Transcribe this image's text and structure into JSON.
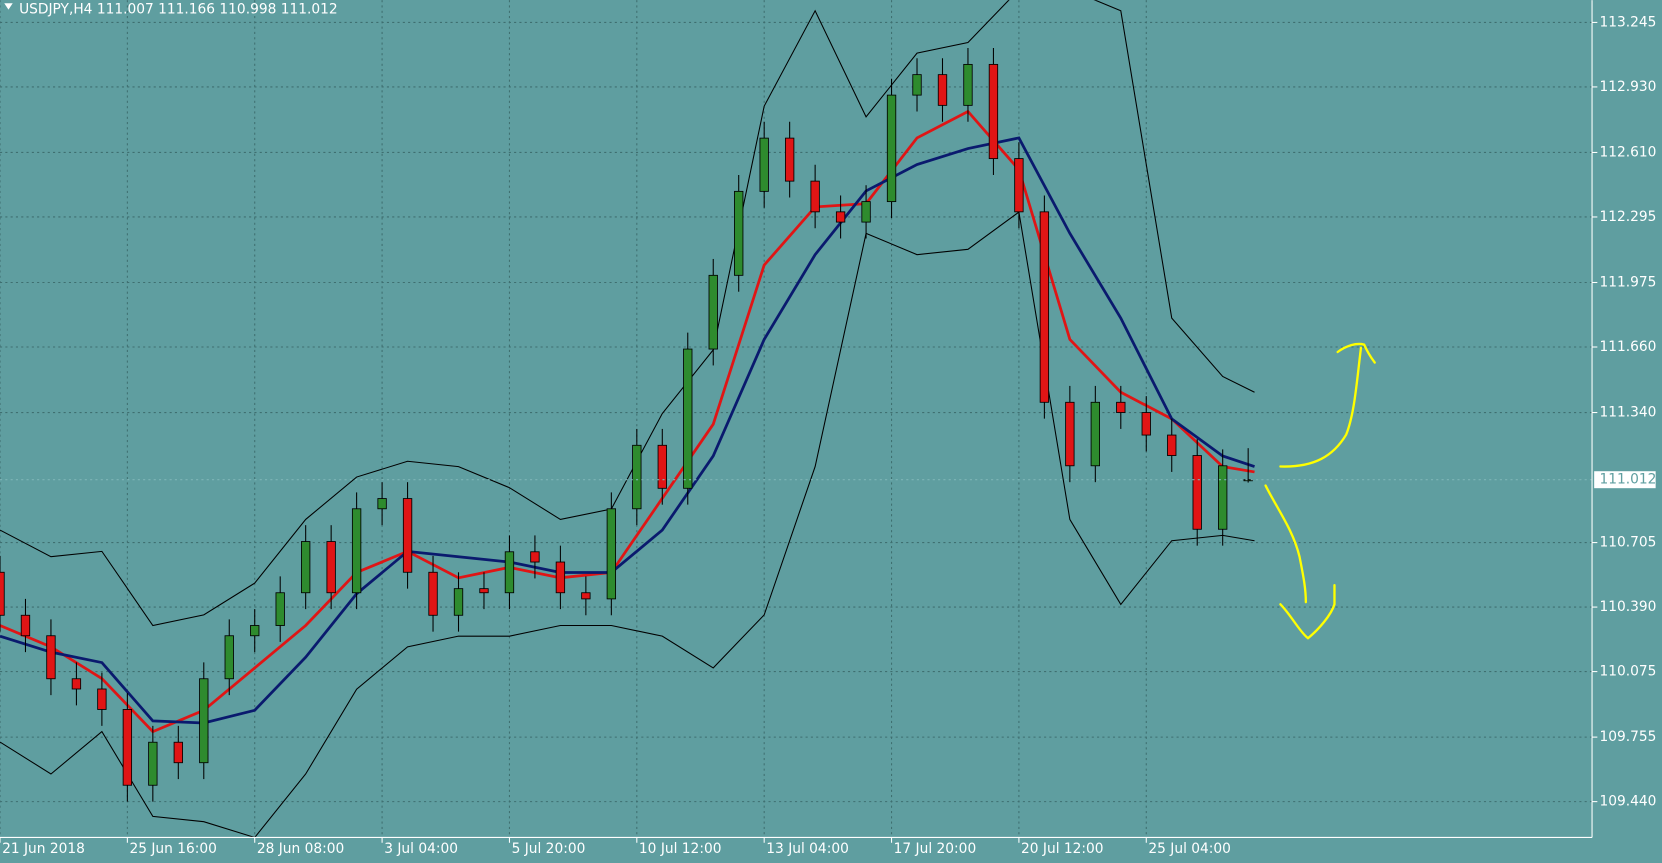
{
  "chart_data": {
    "type": "candlestick",
    "title": "USDJPY,H4  111.007 111.166 110.998 111.012",
    "xlim": [
      0,
      250
    ],
    "ylim": [
      109.265,
      113.354
    ],
    "xticks": [
      {
        "value": 0,
        "label": "21 Jun 2018"
      },
      {
        "value": 20,
        "label": "25 Jun 16:00"
      },
      {
        "value": 40,
        "label": "28 Jun 08:00"
      },
      {
        "value": 60,
        "label": "3 Jul 04:00"
      },
      {
        "value": 80,
        "label": "5 Jul 20:00"
      },
      {
        "value": 100,
        "label": "10 Jul 12:00"
      },
      {
        "value": 120,
        "label": "13 Jul 04:00"
      },
      {
        "value": 140,
        "label": "17 Jul 20:00"
      },
      {
        "value": 160,
        "label": "20 Jul 12:00"
      },
      {
        "value": 180,
        "label": "25 Jul 04:00"
      }
    ],
    "yticks": [
      {
        "value": 113.245,
        "label": "113.245"
      },
      {
        "value": 112.93,
        "label": "112.930"
      },
      {
        "value": 112.61,
        "label": "112.610"
      },
      {
        "value": 112.295,
        "label": "112.295"
      },
      {
        "value": 111.975,
        "label": "111.975"
      },
      {
        "value": 111.66,
        "label": "111.660"
      },
      {
        "value": 111.34,
        "label": "111.340"
      },
      {
        "value": 110.705,
        "label": "110.705"
      },
      {
        "value": 110.39,
        "label": "110.390"
      },
      {
        "value": 110.075,
        "label": "110.075"
      },
      {
        "value": 109.755,
        "label": "109.755"
      },
      {
        "value": 109.44,
        "label": "109.440"
      }
    ],
    "current_price": 111.012,
    "grid": true,
    "bull_color": "#2e8b2e",
    "bear_color": "#e01515",
    "x": [
      0,
      4,
      8,
      12,
      16,
      20,
      24,
      28,
      32,
      36,
      40,
      44,
      48,
      52,
      56,
      60,
      64,
      68,
      72,
      76,
      80,
      84,
      88,
      92,
      96,
      100,
      104,
      108,
      112,
      116,
      120,
      124,
      128,
      132,
      136,
      140,
      144,
      148,
      152,
      156,
      160,
      164,
      168,
      172,
      176,
      180,
      184,
      188,
      192,
      196
    ],
    "open": [
      110.56,
      110.35,
      110.25,
      110.04,
      109.99,
      109.89,
      109.52,
      109.73,
      109.63,
      110.04,
      110.25,
      110.3,
      110.46,
      110.71,
      110.46,
      110.87,
      110.92,
      110.56,
      110.35,
      110.48,
      110.46,
      110.66,
      110.61,
      110.46,
      110.43,
      110.87,
      111.18,
      110.97,
      111.65,
      112.01,
      112.42,
      112.68,
      112.47,
      112.32,
      112.27,
      112.37,
      112.89,
      112.99,
      112.84,
      113.04,
      112.58,
      112.32,
      111.39,
      111.08,
      111.39,
      111.34,
      111.23,
      111.13,
      110.77,
      111.007
    ],
    "high": [
      110.64,
      110.43,
      110.33,
      110.12,
      110.07,
      109.97,
      109.81,
      109.81,
      110.12,
      110.33,
      110.38,
      110.54,
      110.79,
      110.79,
      110.95,
      111.0,
      111.0,
      110.64,
      110.56,
      110.56,
      110.74,
      110.74,
      110.69,
      110.54,
      110.95,
      111.26,
      111.26,
      111.73,
      112.09,
      112.5,
      112.76,
      112.76,
      112.55,
      112.4,
      112.45,
      112.97,
      113.07,
      113.07,
      113.12,
      113.12,
      112.66,
      112.4,
      111.47,
      111.47,
      111.47,
      111.42,
      111.31,
      111.21,
      111.16,
      111.166
    ],
    "low": [
      110.27,
      110.17,
      109.96,
      109.91,
      109.81,
      109.44,
      109.44,
      109.55,
      109.55,
      109.96,
      110.17,
      110.22,
      110.38,
      110.38,
      110.38,
      110.79,
      110.48,
      110.27,
      110.27,
      110.38,
      110.38,
      110.53,
      110.38,
      110.35,
      110.35,
      110.79,
      110.89,
      110.89,
      111.57,
      111.93,
      112.34,
      112.39,
      112.24,
      112.19,
      112.19,
      112.29,
      112.81,
      112.76,
      112.76,
      112.5,
      112.24,
      111.31,
      111.0,
      111.0,
      111.26,
      111.15,
      111.05,
      110.69,
      110.69,
      110.998
    ],
    "close": [
      110.35,
      110.25,
      110.04,
      109.99,
      109.89,
      109.52,
      109.73,
      109.63,
      110.04,
      110.25,
      110.3,
      110.46,
      110.71,
      110.46,
      110.87,
      110.92,
      110.56,
      110.35,
      110.48,
      110.46,
      110.66,
      110.61,
      110.46,
      110.43,
      110.87,
      111.18,
      110.97,
      111.65,
      112.01,
      112.42,
      112.68,
      112.47,
      112.32,
      112.27,
      112.37,
      112.89,
      112.99,
      112.84,
      113.04,
      112.58,
      112.32,
      111.39,
      111.08,
      111.39,
      111.34,
      111.23,
      111.13,
      110.77,
      111.08,
      111.012
    ],
    "lines": [
      {
        "color": "#e01515",
        "x": [
          0,
          8,
          16,
          24,
          32,
          40,
          48,
          56,
          64,
          72,
          80,
          88,
          96,
          104,
          112,
          120,
          128,
          136,
          144,
          152,
          160,
          168,
          176,
          184,
          192,
          197
        ],
        "values": [
          110.3,
          110.196,
          110.041,
          109.782,
          109.886,
          110.093,
          110.3,
          110.559,
          110.662,
          110.533,
          110.584,
          110.533,
          110.559,
          110.921,
          111.283,
          112.06,
          112.344,
          112.36,
          112.681,
          112.81,
          112.526,
          111.697,
          111.439,
          111.309,
          111.076,
          111.05
        ]
      },
      {
        "color": "#0a1a6e",
        "x": [
          0,
          8,
          16,
          24,
          32,
          40,
          48,
          56,
          64,
          72,
          80,
          88,
          96,
          104,
          112,
          120,
          128,
          136,
          144,
          152,
          160,
          168,
          176,
          184,
          192,
          197
        ],
        "values": [
          110.248,
          110.17,
          110.119,
          109.834,
          109.824,
          109.886,
          110.145,
          110.455,
          110.662,
          110.636,
          110.61,
          110.559,
          110.559,
          110.766,
          111.128,
          111.697,
          112.111,
          112.422,
          112.551,
          112.629,
          112.681,
          112.215,
          111.801,
          111.309,
          111.128,
          111.076
        ]
      },
      {
        "color": "#000000",
        "x": [
          0,
          8,
          16,
          24,
          32,
          40,
          48,
          56,
          64,
          72,
          80,
          88,
          96,
          104,
          112,
          120,
          128,
          136,
          144,
          152,
          160,
          168,
          176,
          184,
          192,
          197
        ],
        "values": [
          110.766,
          110.636,
          110.662,
          110.3,
          110.352,
          110.507,
          110.818,
          111.025,
          111.102,
          111.076,
          110.973,
          110.818,
          110.869,
          111.335,
          111.646,
          112.836,
          113.302,
          112.784,
          113.095,
          113.147,
          113.405,
          113.405,
          113.302,
          111.801,
          111.516,
          111.439
        ]
      },
      {
        "color": "#000000",
        "x": [
          0,
          8,
          16,
          24,
          32,
          40,
          48,
          56,
          64,
          72,
          80,
          88,
          96,
          104,
          112,
          120,
          128,
          136,
          144,
          152,
          160,
          168,
          176,
          184,
          192,
          197
        ],
        "values": [
          109.731,
          109.575,
          109.782,
          109.368,
          109.342,
          109.265,
          109.575,
          109.989,
          110.196,
          110.248,
          110.248,
          110.3,
          110.3,
          110.248,
          110.093,
          110.352,
          111.076,
          112.215,
          112.111,
          112.137,
          112.319,
          110.818,
          110.403,
          110.714,
          110.74,
          110.714
        ]
      }
    ]
  }
}
